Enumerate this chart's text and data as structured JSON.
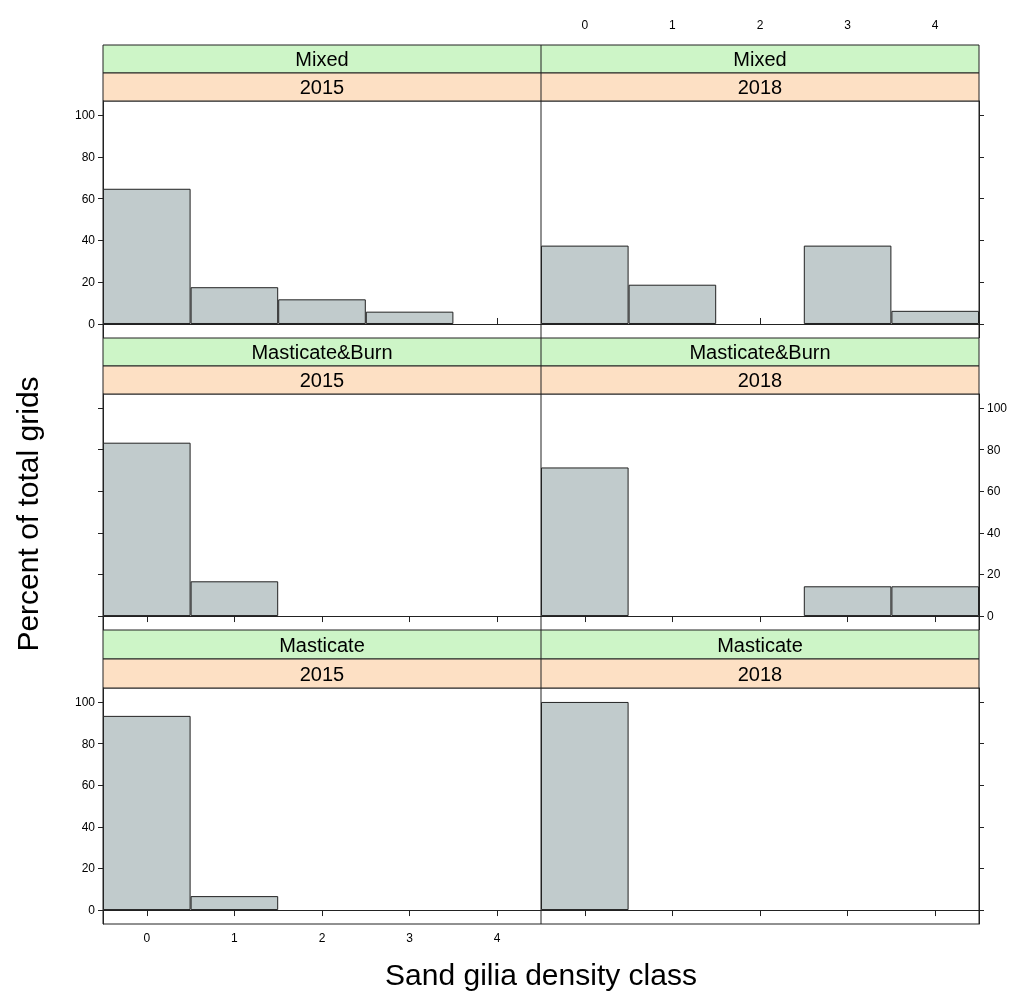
{
  "chart_data": [
    {
      "type": "bar",
      "title": "Mixed",
      "subtitle": "2015",
      "categories": [
        "0",
        "1",
        "2",
        "3",
        "4"
      ],
      "values": [
        64.7,
        17.6,
        11.8,
        5.9,
        0
      ],
      "color": "#c1cbcc",
      "ylim": [
        -6.7,
        106.7
      ],
      "yticks": [
        0,
        20,
        40,
        60,
        80,
        100
      ],
      "tick_labels": "y"
    },
    {
      "type": "bar",
      "title": "Mixed",
      "subtitle": "2018",
      "categories": [
        "0",
        "1",
        "2",
        "3",
        "4"
      ],
      "values": [
        37.5,
        18.8,
        0,
        37.5,
        6.3
      ],
      "color": "#c1cbcc",
      "ylim": [
        -6.7,
        106.7
      ],
      "yticks": [
        0,
        20,
        40,
        60,
        80,
        100
      ],
      "tick_labels": "x"
    },
    {
      "type": "bar",
      "title": "Masticate&Burn",
      "subtitle": "2015",
      "ylabel": "Percent of total grids",
      "categories": [
        "0",
        "1",
        "2",
        "3",
        "4"
      ],
      "values": [
        83.3,
        16.7,
        0,
        0,
        0
      ],
      "color": "#c1cbcc",
      "ylim": [
        -6.7,
        106.7
      ],
      "yticks": [
        0,
        20,
        40,
        60,
        80,
        100
      ],
      "tick_labels": false
    },
    {
      "type": "bar",
      "title": "Masticate&Burn",
      "subtitle": "2018",
      "categories": [
        "0",
        "1",
        "2",
        "3",
        "4"
      ],
      "values": [
        71.4,
        0,
        0,
        14.3,
        14.3
      ],
      "color": "#c1cbcc",
      "ylim": [
        -6.7,
        106.7
      ],
      "yticks": [
        0,
        20,
        40,
        60,
        80,
        100
      ],
      "tick_labels": "y"
    },
    {
      "type": "bar",
      "title": "Masticate",
      "subtitle": "2015",
      "xlabel": "Sand gilia density class",
      "categories": [
        "0",
        "1",
        "2",
        "3",
        "4"
      ],
      "values": [
        93.3,
        6.7,
        0,
        0,
        0
      ],
      "color": "#c1cbcc",
      "ylim": [
        -6.7,
        106.7
      ],
      "yticks": [
        0,
        20,
        40,
        60,
        80,
        100
      ]
    },
    {
      "type": "bar",
      "title": "Masticate",
      "subtitle": "2018",
      "categories": [
        "0",
        "1",
        "2",
        "3",
        "4"
      ],
      "values": [
        100,
        0,
        0,
        0,
        0
      ],
      "color": "#c1cbcc",
      "ylim": [
        -6.7,
        106.7
      ],
      "yticks": [
        0,
        20,
        40,
        60,
        80,
        100
      ],
      "tick_labels": false
    }
  ]
}
